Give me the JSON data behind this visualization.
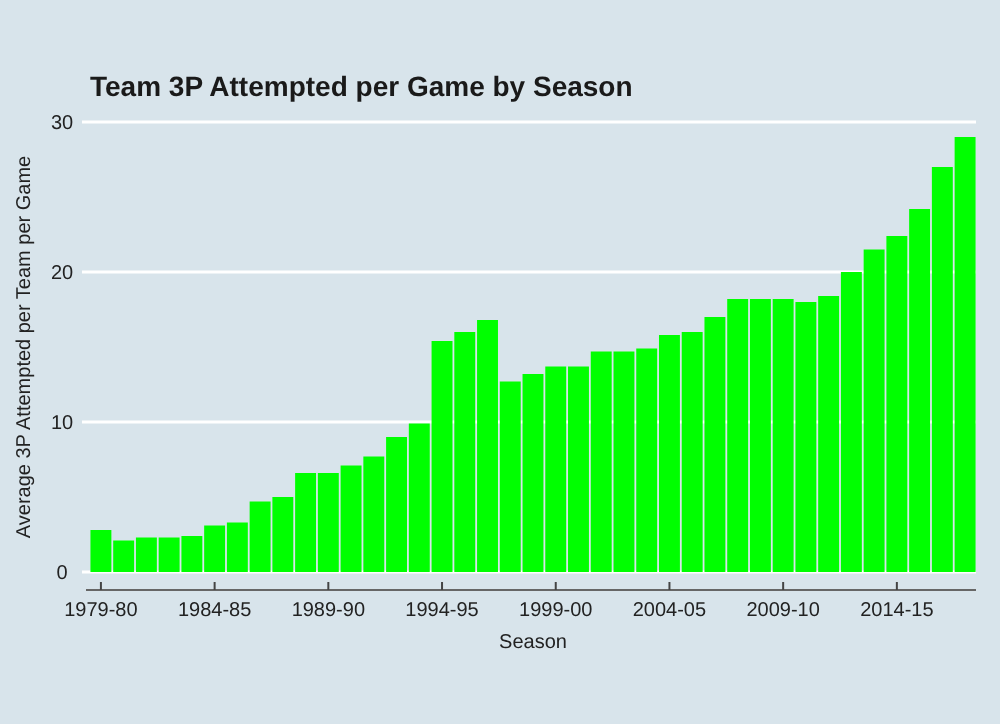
{
  "chart_data": {
    "type": "bar",
    "title": "Team 3P Attempted per Game by Season",
    "xlabel": "Season",
    "ylabel": "Average 3P Attempted per Team per Game",
    "categories": [
      "1979-80",
      null,
      null,
      null,
      null,
      "1984-85",
      null,
      null,
      null,
      null,
      "1989-90",
      null,
      null,
      null,
      null,
      "1994-95",
      null,
      null,
      null,
      null,
      "1999-00",
      null,
      null,
      null,
      null,
      "2004-05",
      null,
      null,
      null,
      null,
      "2009-10",
      null,
      null,
      null,
      null,
      "2014-15",
      null,
      null,
      null
    ],
    "values": [
      2.8,
      2.1,
      2.3,
      2.3,
      2.4,
      3.1,
      3.3,
      4.7,
      5.0,
      6.6,
      6.6,
      7.1,
      7.7,
      9.0,
      9.9,
      15.4,
      16.0,
      16.8,
      12.7,
      13.2,
      13.7,
      13.7,
      14.7,
      14.7,
      14.9,
      15.8,
      16.0,
      17.0,
      18.2,
      18.2,
      18.2,
      18.0,
      18.4,
      20.0,
      21.5,
      22.4,
      24.2,
      27.0,
      29.0
    ],
    "color": "#00ff00",
    "ylim": [
      0,
      30
    ],
    "yticks": [
      0,
      10,
      20,
      30
    ],
    "grid": "y"
  }
}
